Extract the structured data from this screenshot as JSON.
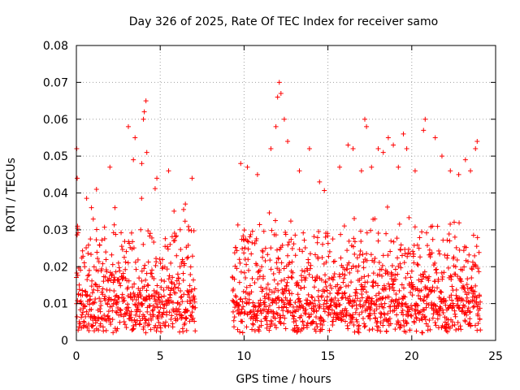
{
  "chart_data": {
    "type": "scatter",
    "title": "Day 326 of 2025, Rate Of TEC Index for receiver samo",
    "xlabel": "GPS time / hours",
    "ylabel": "ROTI / TECUs",
    "xlim": [
      0,
      25
    ],
    "ylim": [
      0,
      0.08
    ],
    "x_ticks": [
      "0",
      "5",
      "10",
      "15",
      "20",
      "25"
    ],
    "y_ticks": [
      "0",
      "0.01",
      "0.02",
      "0.03",
      "0.04",
      "0.05",
      "0.06",
      "0.07",
      "0.08"
    ],
    "grid": true,
    "marker": "+",
    "color": "#ff0000",
    "series": [
      {
        "segments": [
          {
            "start": 0.0,
            "end": 7.1
          },
          {
            "start": 9.3,
            "end": 24.1
          }
        ],
        "typical_range": [
          0.002,
          0.02
        ],
        "outliers": [
          [
            0.02,
            0.052
          ],
          [
            0.05,
            0.044
          ],
          [
            0.07,
            0.031
          ],
          [
            0.9,
            0.036
          ],
          [
            1.2,
            0.041
          ],
          [
            2.0,
            0.047
          ],
          [
            2.3,
            0.036
          ],
          [
            3.1,
            0.058
          ],
          [
            3.4,
            0.049
          ],
          [
            3.9,
            0.048
          ],
          [
            3.5,
            0.055
          ],
          [
            4.0,
            0.06
          ],
          [
            4.05,
            0.062
          ],
          [
            4.15,
            0.065
          ],
          [
            4.2,
            0.051
          ],
          [
            4.8,
            0.044
          ],
          [
            5.5,
            0.046
          ],
          [
            6.5,
            0.037
          ],
          [
            6.9,
            0.044
          ],
          [
            9.8,
            0.048
          ],
          [
            10.2,
            0.047
          ],
          [
            10.8,
            0.045
          ],
          [
            11.6,
            0.052
          ],
          [
            11.9,
            0.058
          ],
          [
            12.0,
            0.066
          ],
          [
            12.1,
            0.07
          ],
          [
            12.2,
            0.067
          ],
          [
            12.4,
            0.06
          ],
          [
            12.6,
            0.054
          ],
          [
            13.3,
            0.046
          ],
          [
            13.9,
            0.052
          ],
          [
            14.5,
            0.043
          ],
          [
            15.7,
            0.047
          ],
          [
            16.2,
            0.053
          ],
          [
            16.5,
            0.052
          ],
          [
            17.0,
            0.046
          ],
          [
            17.2,
            0.06
          ],
          [
            17.3,
            0.058
          ],
          [
            17.6,
            0.047
          ],
          [
            18.0,
            0.052
          ],
          [
            18.3,
            0.051
          ],
          [
            18.6,
            0.055
          ],
          [
            18.9,
            0.053
          ],
          [
            19.2,
            0.047
          ],
          [
            19.5,
            0.056
          ],
          [
            19.7,
            0.052
          ],
          [
            20.2,
            0.046
          ],
          [
            20.7,
            0.057
          ],
          [
            20.8,
            0.06
          ],
          [
            21.4,
            0.055
          ],
          [
            21.8,
            0.05
          ],
          [
            22.3,
            0.046
          ],
          [
            22.8,
            0.045
          ],
          [
            23.2,
            0.049
          ],
          [
            23.5,
            0.046
          ],
          [
            23.8,
            0.052
          ],
          [
            23.9,
            0.054
          ]
        ]
      }
    ]
  }
}
